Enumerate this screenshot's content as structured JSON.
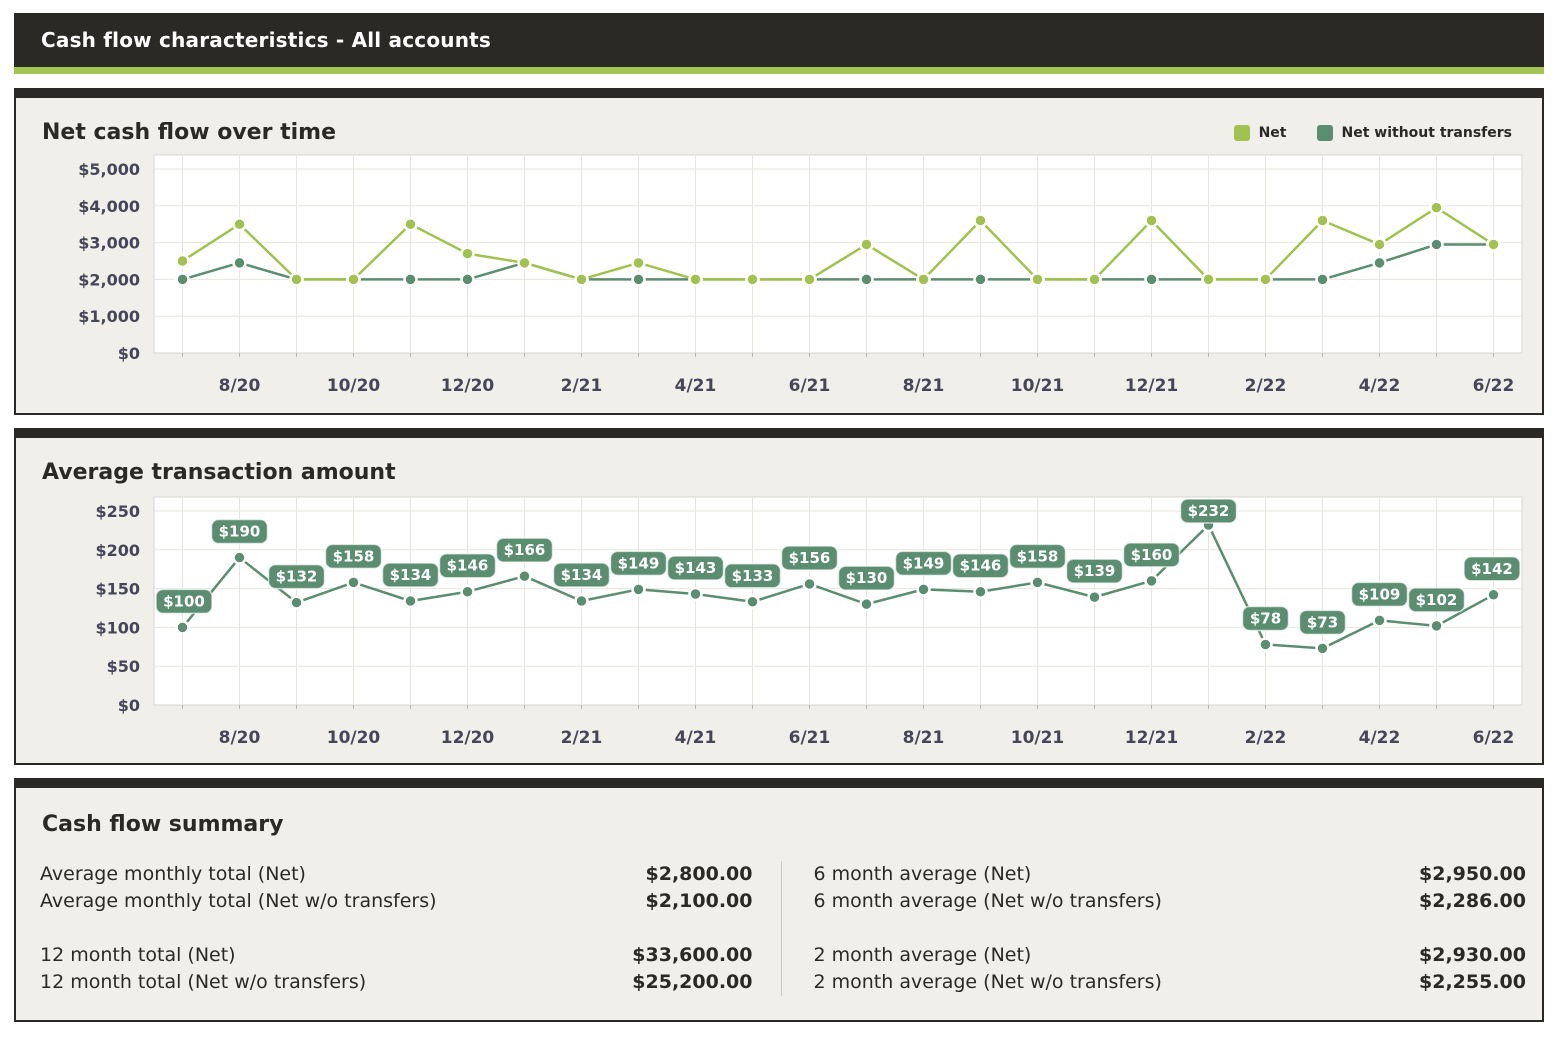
{
  "header": {
    "title": "Cash flow characteristics - All accounts"
  },
  "colors": {
    "header_bg": "#2b2926",
    "accent_strip": "#a3c455",
    "panel_bg": "#f0efe9",
    "net": "#a1c24f",
    "net_without_transfers": "#5b8e71",
    "grid": "#e8e5dd",
    "axis_text": "#46465a"
  },
  "chart_data": [
    {
      "type": "line",
      "title": "Net cash flow over time",
      "x": [
        "7/20",
        "8/20",
        "9/20",
        "10/20",
        "11/20",
        "12/20",
        "1/21",
        "2/21",
        "3/21",
        "4/21",
        "5/21",
        "6/21",
        "7/21",
        "8/21",
        "9/21",
        "10/21",
        "11/21",
        "12/21",
        "1/22",
        "2/22",
        "3/22",
        "4/22",
        "5/22",
        "6/22"
      ],
      "xtick_labels": [
        "8/20",
        "10/20",
        "12/20",
        "2/21",
        "4/21",
        "6/21",
        "8/21",
        "10/21",
        "12/21",
        "2/22",
        "4/22",
        "6/22"
      ],
      "series": [
        {
          "name": "Net",
          "color": "#a1c24f",
          "values": [
            2500,
            3500,
            2000,
            2000,
            3500,
            2700,
            2450,
            2000,
            2450,
            2000,
            2000,
            2000,
            2950,
            2000,
            3600,
            2000,
            2000,
            3600,
            2000,
            2000,
            3600,
            2950,
            3950,
            2950
          ]
        },
        {
          "name": "Net without transfers",
          "color": "#5b8e71",
          "values": [
            2000,
            2450,
            2000,
            2000,
            2000,
            2000,
            2450,
            2000,
            2000,
            2000,
            2000,
            2000,
            2000,
            2000,
            2000,
            2000,
            2000,
            2000,
            2000,
            2000,
            2000,
            2450,
            2950,
            2950
          ]
        }
      ],
      "ylim": [
        0,
        5000
      ],
      "ytick_step": 1000,
      "ytick_labels": [
        "$0",
        "$1,000",
        "$2,000",
        "$3,000",
        "$4,000",
        "$5,000"
      ],
      "grid": true,
      "legend_position": "top-right"
    },
    {
      "type": "line",
      "title": "Average transaction amount",
      "x": [
        "7/20",
        "8/20",
        "9/20",
        "10/20",
        "11/20",
        "12/20",
        "1/21",
        "2/21",
        "3/21",
        "4/21",
        "5/21",
        "6/21",
        "7/21",
        "8/21",
        "9/21",
        "10/21",
        "11/21",
        "12/21",
        "1/22",
        "2/22",
        "3/22",
        "4/22",
        "5/22",
        "6/22"
      ],
      "xtick_labels": [
        "8/20",
        "10/20",
        "12/20",
        "2/21",
        "4/21",
        "6/21",
        "8/21",
        "10/21",
        "12/21",
        "2/22",
        "4/22",
        "6/22"
      ],
      "series": [
        {
          "name": "Average transaction amount",
          "color": "#5b8e71",
          "values": [
            100,
            190,
            132,
            158,
            134,
            146,
            166,
            134,
            149,
            143,
            133,
            156,
            130,
            149,
            146,
            158,
            139,
            160,
            232,
            78,
            73,
            109,
            102,
            142
          ],
          "point_labels": [
            "$100",
            "$190",
            "$132",
            "$158",
            "$134",
            "$146",
            "$166",
            "$134",
            "$149",
            "$143",
            "$133",
            "$156",
            "$130",
            "$149",
            "$146",
            "$158",
            "$139",
            "$160",
            "$232",
            "$78",
            "$73",
            "$109",
            "$102",
            "$142"
          ]
        }
      ],
      "ylim": [
        0,
        250
      ],
      "ytick_step": 50,
      "ytick_labels": [
        "$0",
        "$50",
        "$100",
        "$150",
        "$200",
        "$250"
      ],
      "grid": true,
      "legend_position": "none"
    }
  ],
  "summary": {
    "title": "Cash flow summary",
    "left": [
      {
        "label": "Average monthly total (Net)",
        "value": "$2,800.00"
      },
      {
        "label": "Average monthly total (Net w/o transfers)",
        "value": "$2,100.00"
      },
      {
        "label": "12 month total (Net)",
        "value": "$33,600.00"
      },
      {
        "label": "12 month total (Net w/o transfers)",
        "value": "$25,200.00"
      }
    ],
    "right": [
      {
        "label": "6 month average (Net)",
        "value": "$2,950.00"
      },
      {
        "label": "6 month average (Net w/o transfers)",
        "value": "$2,286.00"
      },
      {
        "label": "2 month average (Net)",
        "value": "$2,930.00"
      },
      {
        "label": "2 month average (Net w/o transfers)",
        "value": "$2,255.00"
      }
    ]
  }
}
